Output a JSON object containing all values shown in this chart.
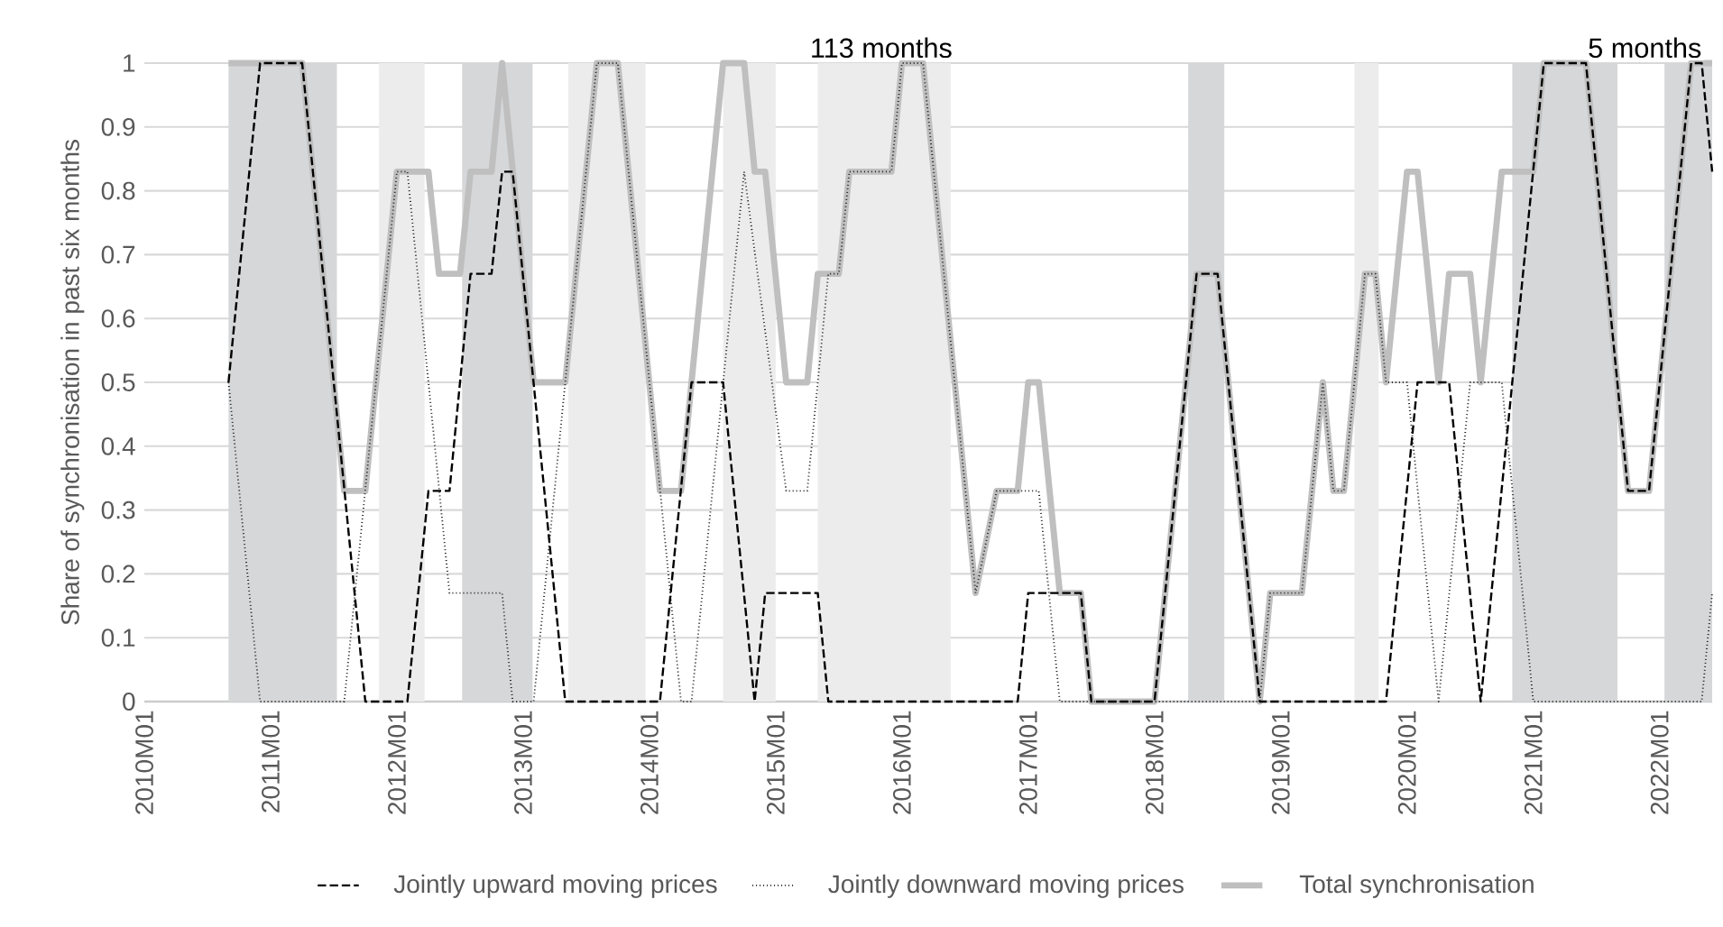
{
  "chart_data": {
    "type": "line",
    "ylabel": "Share of synchronisation in past six months",
    "xlim": [
      "2010-01",
      "2022-06"
    ],
    "xticks": [
      {
        "value": "2010-01",
        "label": "2010M01"
      },
      {
        "value": "2011-01",
        "label": "2011M01"
      },
      {
        "value": "2012-01",
        "label": "2012M01"
      },
      {
        "value": "2013-01",
        "label": "2013M01"
      },
      {
        "value": "2014-01",
        "label": "2014M01"
      },
      {
        "value": "2015-01",
        "label": "2015M01"
      },
      {
        "value": "2016-01",
        "label": "2016M01"
      },
      {
        "value": "2017-01",
        "label": "2017M01"
      },
      {
        "value": "2018-01",
        "label": "2018M01"
      },
      {
        "value": "2019-01",
        "label": "2019M01"
      },
      {
        "value": "2020-01",
        "label": "2020M01"
      },
      {
        "value": "2021-01",
        "label": "2021M01"
      },
      {
        "value": "2022-01",
        "label": "2022M01"
      }
    ],
    "ylim": [
      0,
      1
    ],
    "yticks": [
      0,
      0.1,
      0.2,
      0.3,
      0.4,
      0.5,
      0.6,
      0.7,
      0.8,
      0.9,
      1
    ],
    "grid": "y",
    "legend": "bottom",
    "series": [
      {
        "name": "Jointly upward moving prices",
        "color": "#000000",
        "line_style": "dashed",
        "x": [
          "2010-09",
          "2010-12",
          "2011-04",
          "2011-10",
          "2012-02",
          "2012-04",
          "2012-06",
          "2012-08",
          "2012-10",
          "2012-11",
          "2012-12",
          "2013-05",
          "2014-02",
          "2014-05",
          "2014-08",
          "2014-11",
          "2014-12",
          "2015-05",
          "2015-06",
          "2016-12",
          "2017-01",
          "2017-06",
          "2017-07",
          "2018-01",
          "2018-05",
          "2018-07",
          "2018-11",
          "2019-11",
          "2020-02",
          "2020-05",
          "2020-08",
          "2021-02",
          "2021-06",
          "2021-10",
          "2021-12",
          "2022-04",
          "2022-05",
          "2022-06"
        ],
        "values": [
          0.5,
          1,
          1,
          0,
          0,
          0.33,
          0.33,
          0.67,
          0.67,
          0.83,
          0.83,
          0,
          0,
          0.5,
          0.5,
          0,
          0.17,
          0.17,
          0,
          0,
          0.17,
          0.17,
          0,
          0,
          0.67,
          0.67,
          0,
          0,
          0.5,
          0.5,
          0,
          1,
          1,
          0.33,
          0.33,
          1,
          1,
          0.83
        ]
      },
      {
        "name": "Jointly downward moving prices",
        "color": "#262626",
        "line_style": "dotted",
        "x": [
          "2010-09",
          "2010-12",
          "2011-08",
          "2012-01",
          "2012-02",
          "2012-06",
          "2012-11",
          "2012-12",
          "2013-02",
          "2013-08",
          "2013-10",
          "2014-04",
          "2014-05",
          "2014-10",
          "2015-02",
          "2015-04",
          "2015-06",
          "2015-07",
          "2015-08",
          "2015-12",
          "2016-01",
          "2016-03",
          "2016-08",
          "2016-10",
          "2017-02",
          "2017-04",
          "2018-11",
          "2018-12",
          "2019-03",
          "2019-05",
          "2019-06",
          "2019-07",
          "2019-09",
          "2019-10",
          "2019-11",
          "2020-01",
          "2020-04",
          "2020-07",
          "2020-10",
          "2021-01",
          "2022-05",
          "2022-06"
        ],
        "values": [
          0.5,
          0,
          0,
          0.83,
          0.83,
          0.17,
          0.17,
          0,
          0,
          1,
          1,
          0,
          0,
          0.83,
          0.33,
          0.33,
          0.67,
          0.67,
          0.83,
          0.83,
          1,
          1,
          0.17,
          0.33,
          0.33,
          0,
          0,
          0.17,
          0.17,
          0.5,
          0.33,
          0.33,
          0.67,
          0.67,
          0.5,
          0.5,
          0,
          0.5,
          0.5,
          0,
          0,
          0.17
        ]
      },
      {
        "name": "Total synchronisation",
        "color": "#bfbfbf",
        "line_style": "solid",
        "x": [
          "2010-09",
          "2011-04",
          "2011-08",
          "2011-10",
          "2012-01",
          "2012-04",
          "2012-05",
          "2012-07",
          "2012-08",
          "2012-10",
          "2012-11",
          "2013-02",
          "2013-05",
          "2013-08",
          "2013-10",
          "2014-02",
          "2014-04",
          "2014-05",
          "2014-08",
          "2014-10",
          "2014-11",
          "2014-12",
          "2015-02",
          "2015-04",
          "2015-05",
          "2015-07",
          "2015-08",
          "2015-12",
          "2016-01",
          "2016-03",
          "2016-08",
          "2016-10",
          "2016-12",
          "2017-01",
          "2017-02",
          "2017-04",
          "2017-06",
          "2017-07",
          "2018-01",
          "2018-05",
          "2018-07",
          "2018-11",
          "2018-12",
          "2019-03",
          "2019-05",
          "2019-06",
          "2019-07",
          "2019-09",
          "2019-10",
          "2019-11",
          "2020-01",
          "2020-02",
          "2020-04",
          "2020-05",
          "2020-07",
          "2020-08",
          "2020-10",
          "2021-01",
          "2021-02",
          "2021-06",
          "2021-10",
          "2021-12",
          "2022-04",
          "2022-06"
        ],
        "values": [
          1,
          1,
          0.33,
          0.33,
          0.83,
          0.83,
          0.67,
          0.67,
          0.83,
          0.83,
          1,
          0.5,
          0.5,
          1,
          1,
          0.33,
          0.33,
          0.5,
          1,
          1,
          0.83,
          0.83,
          0.5,
          0.5,
          0.67,
          0.67,
          0.83,
          0.83,
          1,
          1,
          0.17,
          0.33,
          0.33,
          0.5,
          0.5,
          0.17,
          0.17,
          0,
          0,
          0.67,
          0.67,
          0,
          0.17,
          0.17,
          0.5,
          0.33,
          0.33,
          0.67,
          0.67,
          0.5,
          0.83,
          0.83,
          0.5,
          0.67,
          0.67,
          0.5,
          0.83,
          0.83,
          1,
          1,
          0.33,
          0.33,
          1,
          1
        ]
      }
    ],
    "bands": [
      {
        "axis": "x",
        "from": "2010-09-01",
        "to": "2011-07-10",
        "color": "#d6d7d9"
      },
      {
        "axis": "x",
        "from": "2011-11-10",
        "to": "2012-03-20",
        "color": "#ececec"
      },
      {
        "axis": "x",
        "from": "2012-07-07",
        "to": "2013-01-28",
        "color": "#d6d7d9"
      },
      {
        "axis": "x",
        "from": "2013-05-10",
        "to": "2013-12-20",
        "color": "#ececec"
      },
      {
        "axis": "x",
        "from": "2014-08-01",
        "to": "2015-01-01",
        "color": "#ececec"
      },
      {
        "axis": "x",
        "from": "2015-05-01",
        "to": "2016-05-20",
        "color": "#ececec"
      },
      {
        "axis": "x",
        "from": "2018-04-07",
        "to": "2018-07-20",
        "color": "#d6d7d9"
      },
      {
        "axis": "x",
        "from": "2019-08-01",
        "to": "2019-10-10",
        "color": "#ececec"
      },
      {
        "axis": "x",
        "from": "2020-11-01",
        "to": "2021-09-01",
        "color": "#d6d7d9"
      },
      {
        "axis": "x",
        "from": "2022-01-15",
        "to": "2022-06-01",
        "color": "#d6d7d9"
      }
    ],
    "annotations": [
      "113 months",
      "5 months"
    ]
  }
}
